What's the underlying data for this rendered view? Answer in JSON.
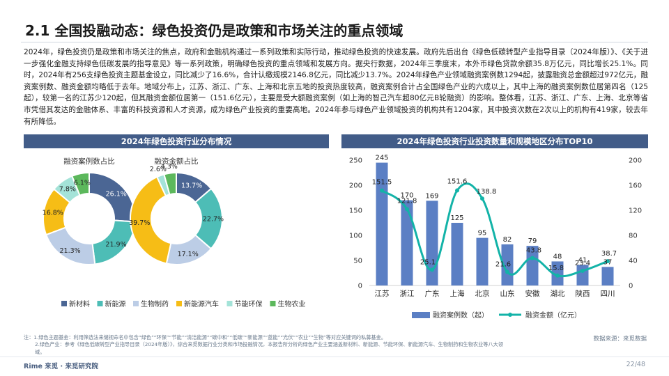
{
  "page": {
    "title": "2.1 全国投融动态：绿色投资仍是政策和市场关注的重点领域",
    "body_text": "2024年，绿色投资仍是政策和市场关注的焦点，政府和金融机构通过一系列政策和实际行动，推动绿色投资的快速发展。政府先后出台《绿色低碳转型产业指导目录（2024年版）》、《关于进一步强化金融支持绿色低碳发展的指导意见》等一系列政策，明确绿色投资的重点领域和发展方向。据央行数据，2024年三季度末，本外币绿色贷款余额35.8万亿元，同比增长25.1%。同时，2024年有256支绿色投资主题基金设立，同比减少了16.6%，合计认缴规模2146.8亿元，同比减少13.7%。2024年绿色产业领域融资案例数1294起，披露融资总金额超过972亿元，融资案例数、融资金额均略低于去年。地域分布上，江苏、浙江、广东、上海和北京五地的投资热度较高，融资案例合计占全国绿色产业的六成以上，其中上海的融资案例数位居第四名（125起），较第一名的江苏少120起，但其融资金额位居第一（151.6亿元），主要是受大额融资案例（如上海的智己汽车超80亿元B轮融资）的影响。整体看，江苏、浙江、广东、上海、北京等省市凭借其发达的金融体系、丰富的科技资源和人才资源，成为绿色产业投资的重要高地。2024年参与绿色产业领域投资的机构共有1204家，其中投资次数在2次以上的机构有419家，较去年有所降低。",
    "note_line1": "注：1.绿色主题基金：利用筛选法来储视命名中包含“绿色”“环保”“节能”“清洁能源”“碳中和”“低碳”“新能源”“蓝能”“光伏”“农业”“生物”等对应关键词的私募基金。",
    "note_line2": "2.绿色产业：参考《绿色低碳转型产业指导目录（2024年版）》，综合来觅数据行业分类和市场投融情况，本报告所分析的绿色产业主要涵盖新材料、新能源、节能环保、新能源汽车、生物制药和生物农业等八大领域。",
    "source": "数据来源：来觅数据",
    "brand": "Rime 来觅 · 来觅研究院",
    "page_num": "22/48"
  },
  "chart_data": [
    {
      "type": "pie",
      "title": "2024年绿色投资行业分布情况",
      "legend": [
        "新材料",
        "新能源",
        "生物制药",
        "新能源汽车",
        "节能环保",
        "生物农业"
      ],
      "colors": {
        "新材料": "#4b6694",
        "新能源": "#4dbdb6",
        "生物制药": "#bccde6",
        "新能源汽车": "#f6bd16",
        "节能环保": "#a4e3d8",
        "生物农业": "#5cb85c"
      },
      "charts": [
        {
          "subtitle": "融资案例数占比",
          "slices": [
            {
              "label": "新材料",
              "value": 26.1,
              "text": "26.1%"
            },
            {
              "label": "新能源",
              "value": 21.9,
              "text": "21.9%"
            },
            {
              "label": "生物制药",
              "value": 21.3,
              "text": "21.3%"
            },
            {
              "label": "新能源汽车",
              "value": 16.8,
              "text": "16.8%"
            },
            {
              "label": "节能环保",
              "value": 7.8,
              "text": "7.8%"
            },
            {
              "label": "生物农业",
              "value": 6.1,
              "text": "6.1%"
            }
          ]
        },
        {
          "subtitle": "融资金额占比",
          "slices": [
            {
              "label": "新材料",
              "value": 13.7,
              "text": "13.7%"
            },
            {
              "label": "新能源",
              "value": 22.7,
              "text": "22.7%"
            },
            {
              "label": "生物制药",
              "value": 17.1,
              "text": "17.1%"
            },
            {
              "label": "新能源汽车",
              "value": 39.7,
              "text": "39.7%"
            },
            {
              "label": "节能环保",
              "value": 2.6,
              "text": "2.6%"
            },
            {
              "label": "生物农业",
              "value": 4.3,
              "text": "4.3%"
            }
          ]
        }
      ]
    },
    {
      "type": "bar",
      "title": "2024年绿色投资行业投资数量和规模地区分布TOP10",
      "categories": [
        "江苏",
        "浙江",
        "广东",
        "上海",
        "北京",
        "山东",
        "安徽",
        "湖北",
        "陕西",
        "四川"
      ],
      "series": [
        {
          "name": "融资案例数（起）",
          "type": "bar",
          "axis": "left",
          "color": "#5b7fc4",
          "values": [
            245,
            170,
            169,
            125,
            95,
            82,
            79,
            48,
            41,
            37
          ],
          "labels": [
            "245",
            "170",
            "169",
            "125",
            "95",
            "82",
            "79",
            "48",
            "41",
            "37"
          ]
        },
        {
          "name": "融资金额（亿元）",
          "type": "line",
          "axis": "right",
          "color": "#13b3a8",
          "values": [
            151.5,
            121.8,
            25.1,
            151.6,
            138.8,
            21.6,
            43.8,
            15.8,
            23.4,
            38.7
          ],
          "labels": [
            "151.5",
            "121.8",
            "25.1",
            "151.6",
            "138.8",
            "21.6",
            "43.8",
            "15.8",
            "23.4",
            "38.7"
          ]
        }
      ],
      "ylim_left": [
        0,
        250
      ],
      "yticks_left": [
        "0",
        "50",
        "100",
        "150",
        "200",
        "250"
      ],
      "ylim_right": [
        0,
        200
      ],
      "yticks_right": [
        "0",
        "40",
        "80",
        "120",
        "160",
        "200"
      ],
      "legend_position": "bottom"
    }
  ]
}
